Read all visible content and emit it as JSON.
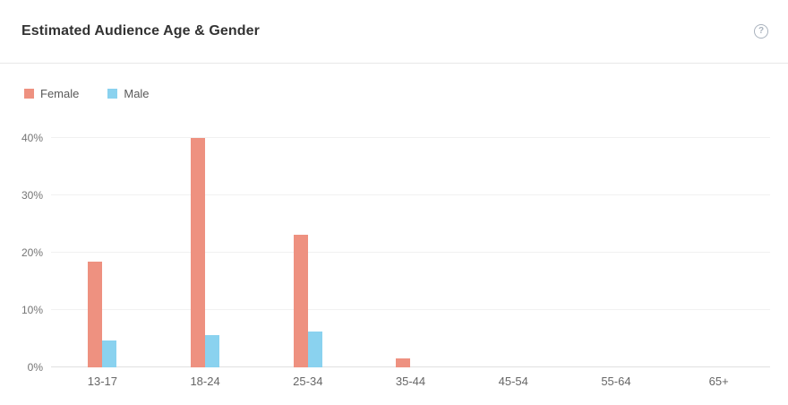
{
  "header": {
    "title": "Estimated Audience Age & Gender",
    "help_glyph": "?"
  },
  "chart_data": {
    "type": "bar",
    "title": "Estimated Audience Age & Gender",
    "categories": [
      "13-17",
      "18-24",
      "25-34",
      "35-44",
      "45-54",
      "55-64",
      "65+"
    ],
    "series": [
      {
        "name": "Female",
        "color": "#ee9180",
        "values": [
          18.4,
          40,
          23.1,
          1.5,
          0,
          0,
          0
        ]
      },
      {
        "name": "Male",
        "color": "#8ad2ef",
        "values": [
          4.7,
          5.6,
          6.3,
          0,
          0,
          0,
          0
        ]
      }
    ],
    "xlabel": "",
    "ylabel": "",
    "ylim": [
      0,
      40
    ],
    "yticks": [
      0,
      10,
      20,
      30,
      40
    ],
    "ytick_suffix": "%",
    "grid": true,
    "legend_position": "top-left",
    "colors": {
      "grid": "#f1f1f1",
      "axis_line": "#e0e0e0",
      "tick_text": "#757575"
    }
  }
}
